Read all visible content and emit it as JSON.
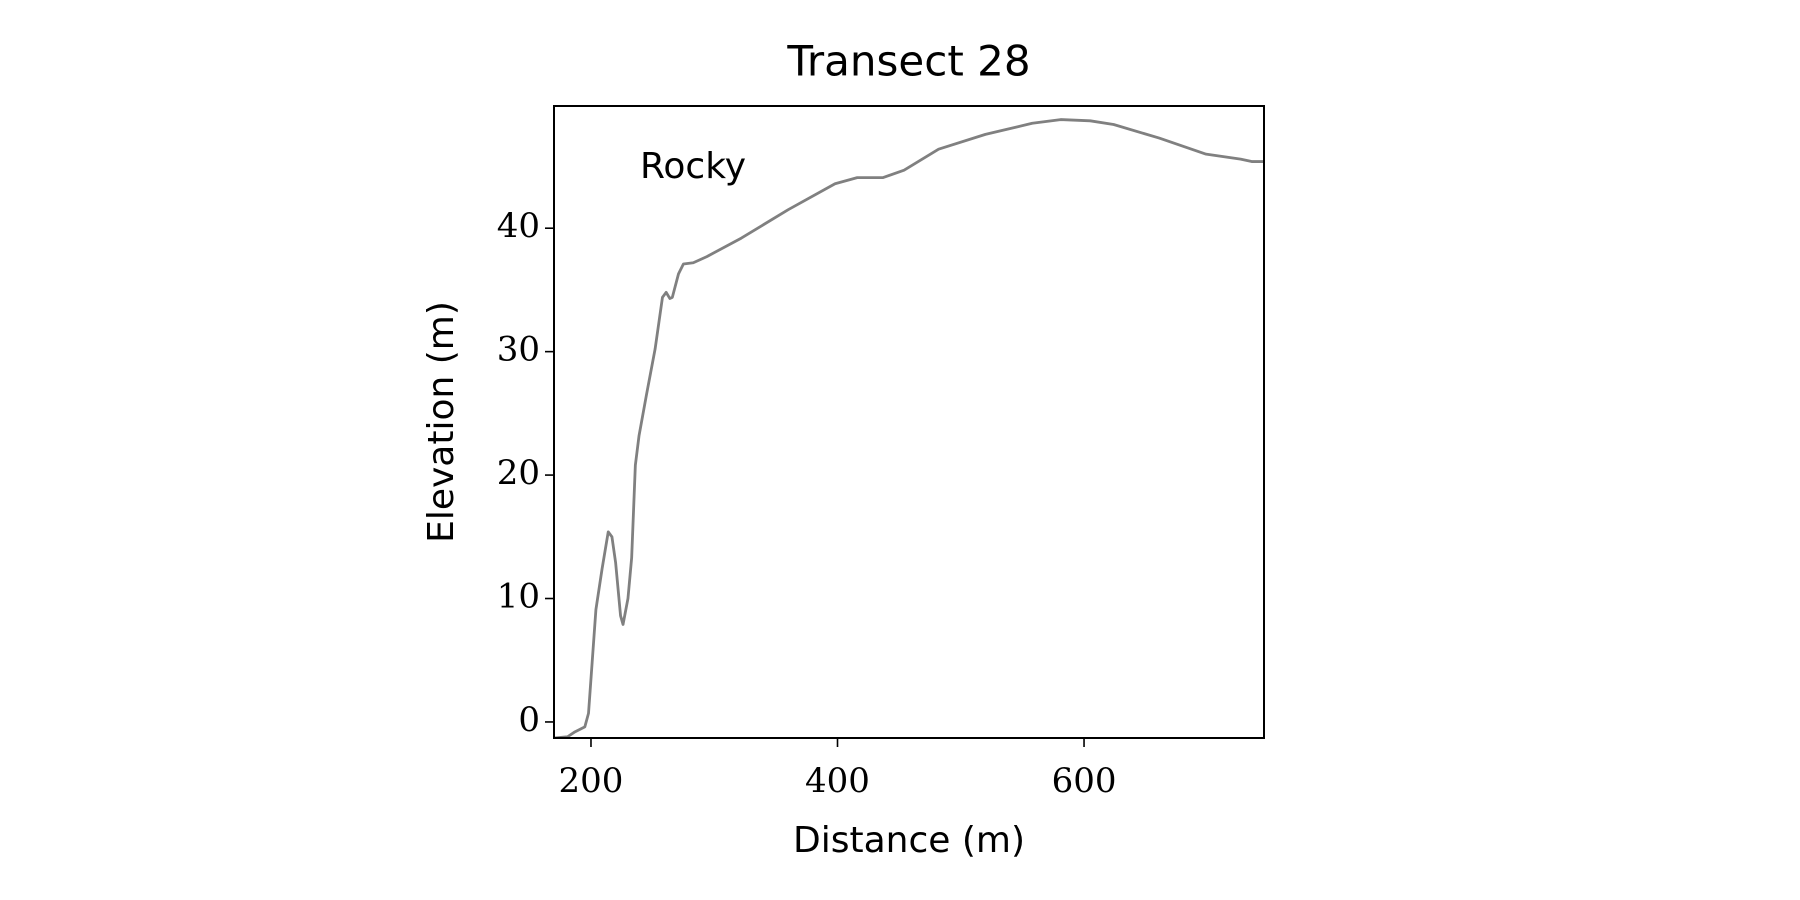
{
  "chart_data": {
    "type": "line",
    "title": "Transect 28",
    "x_label": "Distance (m)",
    "y_label": "Elevation (m)",
    "annotation": "Rocky",
    "x": [
      170,
      181,
      187,
      195,
      198,
      201,
      204,
      209,
      214,
      217,
      220,
      224,
      226,
      230,
      233,
      236,
      239,
      245,
      252,
      258,
      261,
      264,
      266,
      271,
      275,
      283,
      294,
      322,
      360,
      398,
      416,
      437,
      454,
      482,
      520,
      558,
      581,
      605,
      624,
      661,
      699,
      727,
      736,
      746
    ],
    "values": [
      -1.3,
      -1.2,
      -0.8,
      -0.4,
      0.7,
      4.9,
      9.1,
      12.4,
      15.4,
      15.0,
      12.9,
      8.6,
      7.9,
      10.0,
      13.3,
      20.8,
      23.2,
      26.5,
      30.2,
      34.4,
      34.8,
      34.3,
      34.4,
      36.3,
      37.1,
      37.2,
      37.7,
      39.2,
      41.5,
      43.6,
      44.1,
      44.1,
      44.7,
      46.4,
      47.6,
      48.5,
      48.8,
      48.7,
      48.4,
      47.3,
      46.0,
      45.6,
      45.4,
      45.4
    ],
    "color": "#808080",
    "xlim": [
      170,
      746
    ],
    "ylim": [
      -1.3,
      49.9
    ],
    "xticks": [
      200,
      400,
      600
    ],
    "yticks": [
      0,
      10,
      20,
      30,
      40
    ],
    "grid": false
  }
}
